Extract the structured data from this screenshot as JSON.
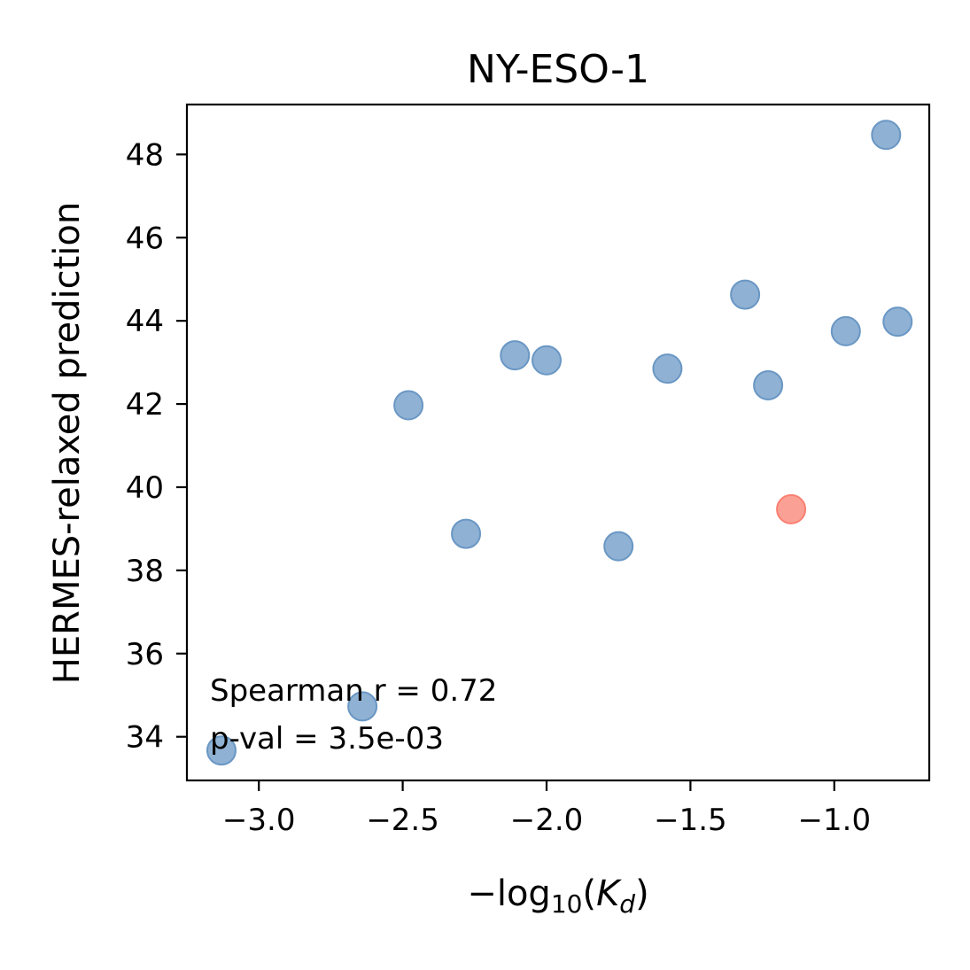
{
  "chart_data": {
    "type": "scatter",
    "title": "NY-ESO-1",
    "xlabel": {
      "prefix": "−log",
      "subscript": "10",
      "open": "(",
      "var": "K",
      "var_subscript": "d",
      "close": ")"
    },
    "ylabel": "HERMES-relaxed prediction",
    "xlim": [
      -3.25,
      -0.67
    ],
    "ylim": [
      32.95,
      49.2
    ],
    "xticks": [
      -3.0,
      -2.5,
      -2.0,
      -1.5,
      -1.0
    ],
    "xtick_labels": [
      "−3.0",
      "−2.5",
      "−2.0",
      "−1.5",
      "−1.0"
    ],
    "yticks": [
      34,
      36,
      38,
      40,
      42,
      44,
      46,
      48
    ],
    "ytick_labels": [
      "34",
      "36",
      "38",
      "40",
      "42",
      "44",
      "46",
      "48"
    ],
    "grid": false,
    "series": [
      {
        "color": "#6a97c4",
        "points": [
          {
            "x": -3.13,
            "y": 33.67
          },
          {
            "x": -2.64,
            "y": 34.73
          },
          {
            "x": -2.48,
            "y": 41.97
          },
          {
            "x": -2.28,
            "y": 38.88
          },
          {
            "x": -2.11,
            "y": 43.17
          },
          {
            "x": -2.0,
            "y": 43.05
          },
          {
            "x": -1.75,
            "y": 38.58
          },
          {
            "x": -1.58,
            "y": 42.85
          },
          {
            "x": -1.31,
            "y": 44.63
          },
          {
            "x": -1.23,
            "y": 42.45
          },
          {
            "x": -0.96,
            "y": 43.75
          },
          {
            "x": -0.82,
            "y": 48.47
          },
          {
            "x": -0.78,
            "y": 43.98
          }
        ]
      },
      {
        "color": "#fa8072",
        "points": [
          {
            "x": -1.15,
            "y": 39.47
          }
        ]
      }
    ],
    "annotations": {
      "spearman": "Spearman r = 0.72",
      "pval": "p-val = 3.5e-03"
    }
  }
}
